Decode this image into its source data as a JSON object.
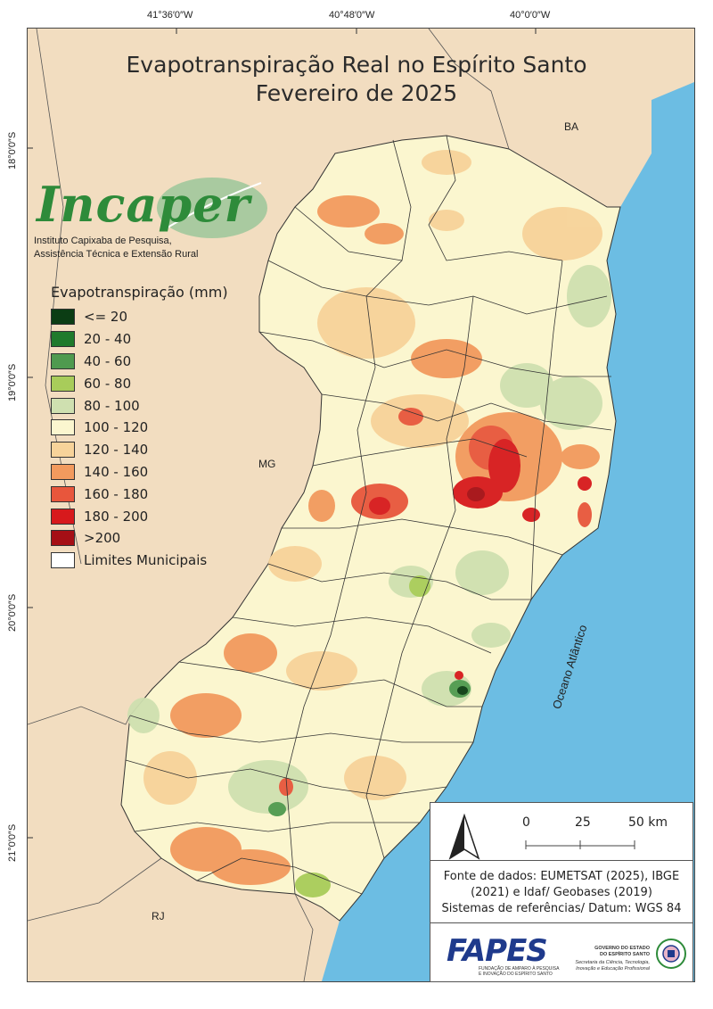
{
  "title": {
    "line1": "Evapotranspiração Real no Espírito Santo",
    "line2": "Fevereiro de 2025"
  },
  "coordinates": {
    "top": [
      "41°36′0″W",
      "40°48′0″W",
      "40°0′0″W"
    ],
    "left": [
      "18°0′0″S",
      "19°0′0″S",
      "20°0′0″S",
      "21°0′0″S"
    ]
  },
  "regions": {
    "ba": "BA",
    "mg": "MG",
    "rj": "RJ",
    "ocean": "Oceano Atlântico"
  },
  "logo": {
    "word_green": "Inca",
    "word_leaf": "per",
    "line1": "Instituto Capixaba de Pesquisa,",
    "line2": "Assistência Técnica e Extensão Rural"
  },
  "legend": {
    "title": "Evapotranspiração (mm)",
    "items": [
      {
        "label": "<= 20",
        "color": "#0b3d14"
      },
      {
        "label": "20 - 40",
        "color": "#1f7a2c"
      },
      {
        "label": "40 - 60",
        "color": "#4f9a4f"
      },
      {
        "label": "60 - 80",
        "color": "#a8cc5a"
      },
      {
        "label": "80 - 100",
        "color": "#cfe0b0"
      },
      {
        "label": "100 - 120",
        "color": "#fbf6cf"
      },
      {
        "label": "120 - 140",
        "color": "#f7d39a"
      },
      {
        "label": "140 - 160",
        "color": "#f29a5e"
      },
      {
        "label": "160 - 180",
        "color": "#e8563c"
      },
      {
        "label": "180 - 200",
        "color": "#d7191c"
      },
      {
        "label": ">200",
        "color": "#a50f15"
      },
      {
        "label": "Limites Municipais",
        "color": "#ffffff"
      }
    ]
  },
  "scale": {
    "labels": [
      "0",
      "25",
      "50 km"
    ]
  },
  "source": {
    "line1": "Fonte de dados: EUMETSAT (2025), IBGE",
    "line2": "(2021) e Idaf/ Geobases (2019)",
    "line3": "Sistemas de referências/ Datum: WGS 84"
  },
  "fapes": {
    "name": "FAPES",
    "sub1": "FUNDAÇÃO DE AMPARO À PESQUISA",
    "sub2": "E INOVAÇÃO DO ESPÍRITO SANTO"
  },
  "government": {
    "line1": "GOVERNO DO ESTADO",
    "line2": "DO ESPÍRITO SANTO",
    "line3": "Secretaria da Ciência, Tecnologia,",
    "line4": "Inovação e Educação Profissional"
  },
  "colors": {
    "land": "#f2ddc0",
    "ocean": "#6cbde3",
    "brand_green": "#2e8b3a",
    "fapes_blue": "#1f3a8c"
  }
}
